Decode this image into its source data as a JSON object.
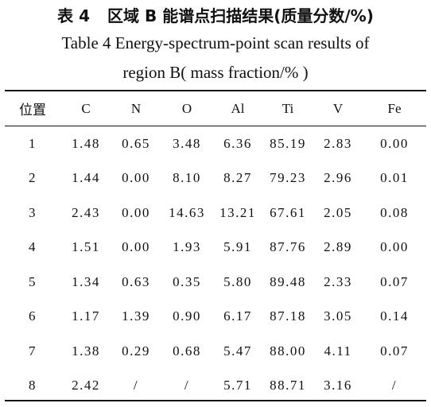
{
  "caption": {
    "number_cn": "表 4",
    "title_cn": "区域 B 能谱点扫描结果(质量分数/%)",
    "title_en_line1": "Table 4 Energy-spectrum-point scan results of",
    "title_en_line2": "region B( mass fraction/% )"
  },
  "table": {
    "headers": [
      "位置",
      "C",
      "N",
      "O",
      "Al",
      "Ti",
      "V",
      "Fe"
    ],
    "rows": [
      [
        "1",
        "1.48",
        "0.65",
        "3.48",
        "6.36",
        "85.19",
        "2.83",
        "0.00"
      ],
      [
        "2",
        "1.44",
        "0.00",
        "8.10",
        "8.27",
        "79.23",
        "2.96",
        "0.01"
      ],
      [
        "3",
        "2.43",
        "0.00",
        "14.63",
        "13.21",
        "67.61",
        "2.05",
        "0.08"
      ],
      [
        "4",
        "1.51",
        "0.00",
        "1.93",
        "5.91",
        "87.76",
        "2.89",
        "0.00"
      ],
      [
        "5",
        "1.34",
        "0.63",
        "0.35",
        "5.80",
        "89.48",
        "2.33",
        "0.07"
      ],
      [
        "6",
        "1.17",
        "1.39",
        "0.90",
        "6.17",
        "87.18",
        "3.05",
        "0.14"
      ],
      [
        "7",
        "1.38",
        "0.29",
        "0.68",
        "5.47",
        "88.00",
        "4.11",
        "0.07"
      ],
      [
        "8",
        "2.42",
        "/",
        "/",
        "5.71",
        "88.71",
        "3.16",
        "/"
      ]
    ]
  }
}
